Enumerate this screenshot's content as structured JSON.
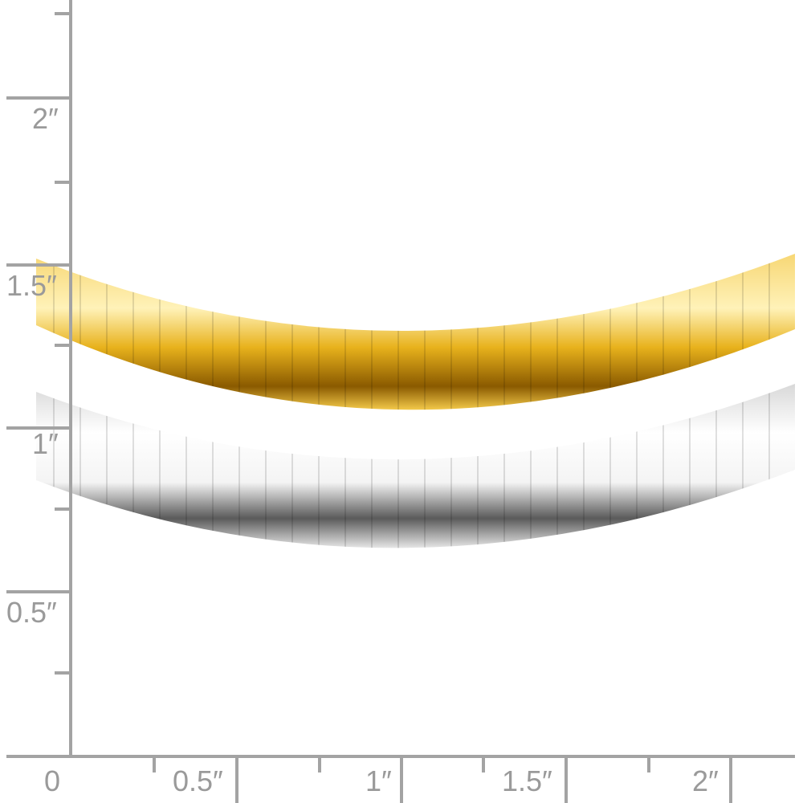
{
  "ruler": {
    "vertical_labels": [
      "2″",
      "1.5″",
      "1″",
      "0.5″"
    ],
    "horizontal_labels": [
      "0",
      "0.5″",
      "1″",
      "1.5″",
      "2″"
    ]
  }
}
